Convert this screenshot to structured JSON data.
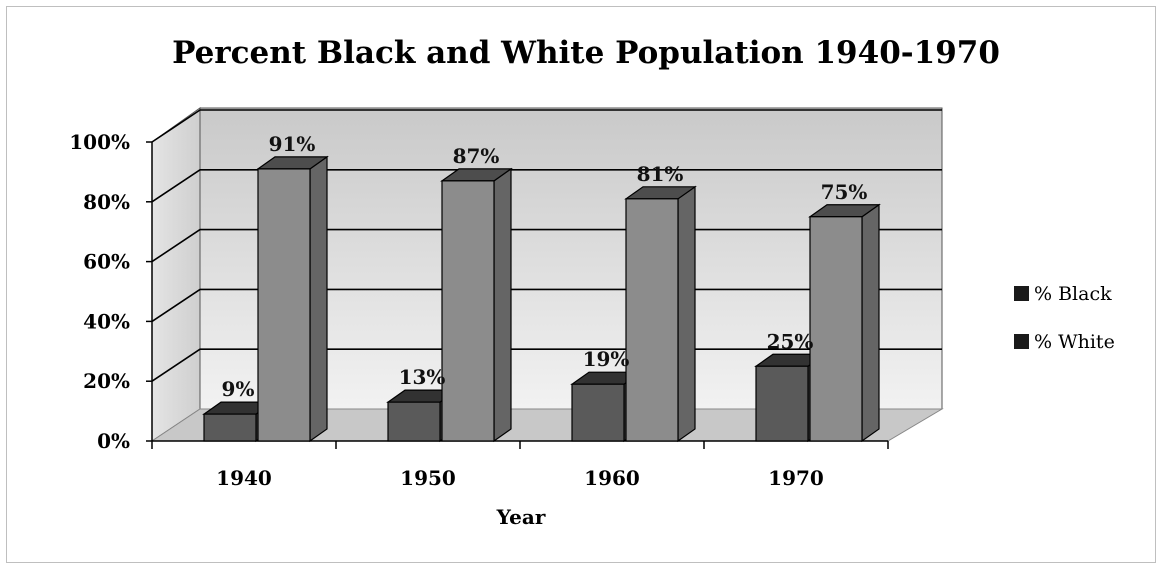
{
  "chart_data": {
    "type": "bar",
    "title": "Percent Black and White Population 1940-1970",
    "xlabel": "Year",
    "ylabel": "",
    "categories": [
      "1940",
      "1950",
      "1960",
      "1970"
    ],
    "series": [
      {
        "name": "% Black",
        "values": [
          9,
          13,
          19,
          25
        ],
        "labels": [
          "9%",
          "13%",
          "19%",
          "25%"
        ],
        "color": "#5a5a5a"
      },
      {
        "name": "% White",
        "values": [
          91,
          87,
          81,
          75
        ],
        "labels": [
          "91%",
          "87%",
          "81%",
          "75%"
        ],
        "color": "#8c8c8c"
      }
    ],
    "ylim": [
      0,
      100
    ],
    "yticks": [
      "0%",
      "20%",
      "40%",
      "60%",
      "80%",
      "100%"
    ],
    "grid": true,
    "legend": "right",
    "style": "3d-clustered-column"
  }
}
